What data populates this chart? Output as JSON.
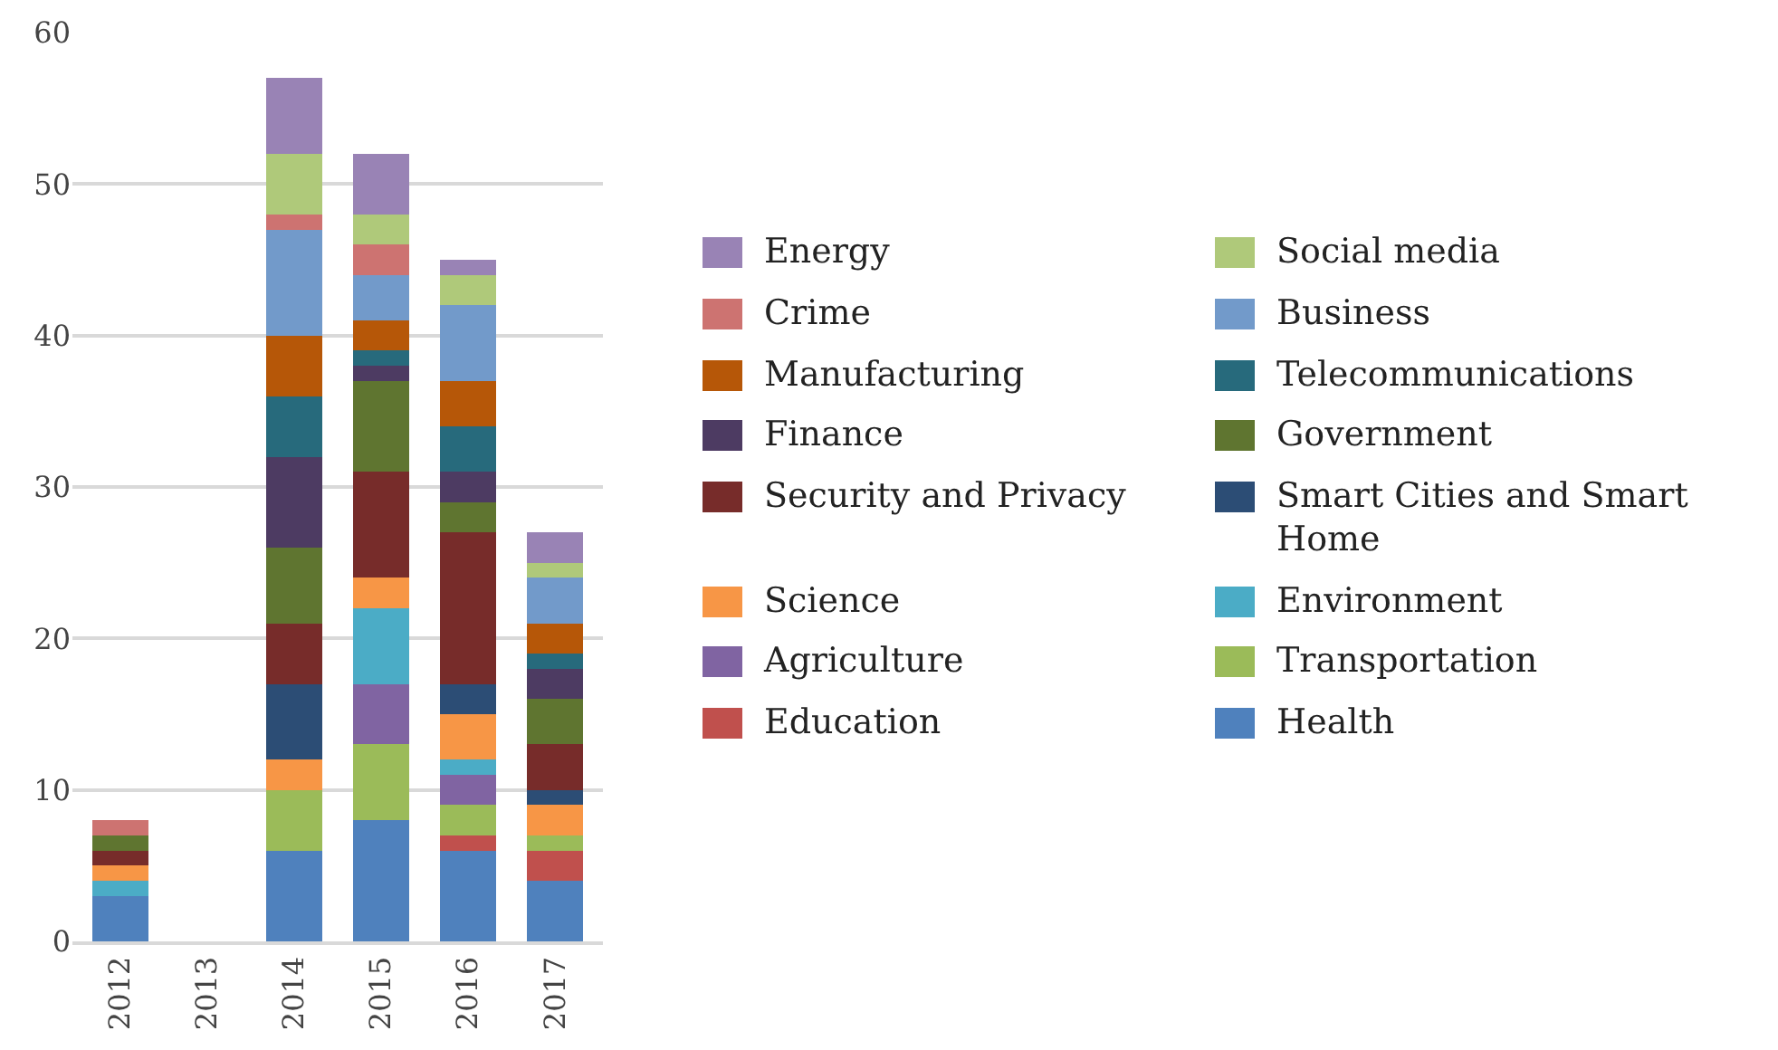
{
  "chart_data": {
    "type": "bar",
    "stacked": true,
    "categories": [
      "2012",
      "2013",
      "2014",
      "2015",
      "2016",
      "2017"
    ],
    "ylim": [
      0,
      60
    ],
    "yticks": [
      0,
      10,
      20,
      30,
      40,
      50,
      60
    ],
    "grid": "y",
    "legend": "right",
    "series": [
      {
        "name": "Health",
        "color": "#4f81bd",
        "values": [
          3,
          0,
          6,
          8,
          6,
          4
        ]
      },
      {
        "name": "Education",
        "color": "#c0504d",
        "values": [
          0,
          0,
          0,
          0,
          1,
          2
        ]
      },
      {
        "name": "Transportation",
        "color": "#9bbb59",
        "values": [
          0,
          0,
          4,
          5,
          2,
          1
        ]
      },
      {
        "name": "Agriculture",
        "color": "#8064a2",
        "values": [
          0,
          0,
          0,
          4,
          2,
          0
        ]
      },
      {
        "name": "Environment",
        "color": "#4bacc6",
        "values": [
          1,
          0,
          0,
          5,
          1,
          0
        ]
      },
      {
        "name": "Science",
        "color": "#f79646",
        "values": [
          1,
          0,
          2,
          2,
          3,
          2
        ]
      },
      {
        "name": "Smart Cities and Smart Home",
        "color": "#2c4d75",
        "values": [
          0,
          0,
          5,
          0,
          2,
          1
        ]
      },
      {
        "name": "Security and Privacy",
        "color": "#772c2a",
        "values": [
          1,
          0,
          4,
          7,
          10,
          3
        ]
      },
      {
        "name": "Government",
        "color": "#5f7530",
        "values": [
          1,
          0,
          5,
          6,
          2,
          3
        ]
      },
      {
        "name": "Finance",
        "color": "#4d3b62",
        "values": [
          0,
          0,
          6,
          1,
          2,
          2
        ]
      },
      {
        "name": "Telecommunications",
        "color": "#276a7c",
        "values": [
          0,
          0,
          4,
          1,
          3,
          1
        ]
      },
      {
        "name": "Manufacturing",
        "color": "#b65708",
        "values": [
          0,
          0,
          4,
          2,
          3,
          2
        ]
      },
      {
        "name": "Business",
        "color": "#729aca",
        "values": [
          0,
          0,
          7,
          3,
          5,
          3
        ]
      },
      {
        "name": "Crime",
        "color": "#cd7371",
        "values": [
          1,
          0,
          1,
          2,
          0,
          0
        ]
      },
      {
        "name": "Social media",
        "color": "#afc97a",
        "values": [
          0,
          0,
          4,
          2,
          2,
          1
        ]
      },
      {
        "name": "Energy",
        "color": "#9983b5",
        "values": [
          0,
          0,
          5,
          4,
          1,
          2
        ]
      }
    ]
  }
}
